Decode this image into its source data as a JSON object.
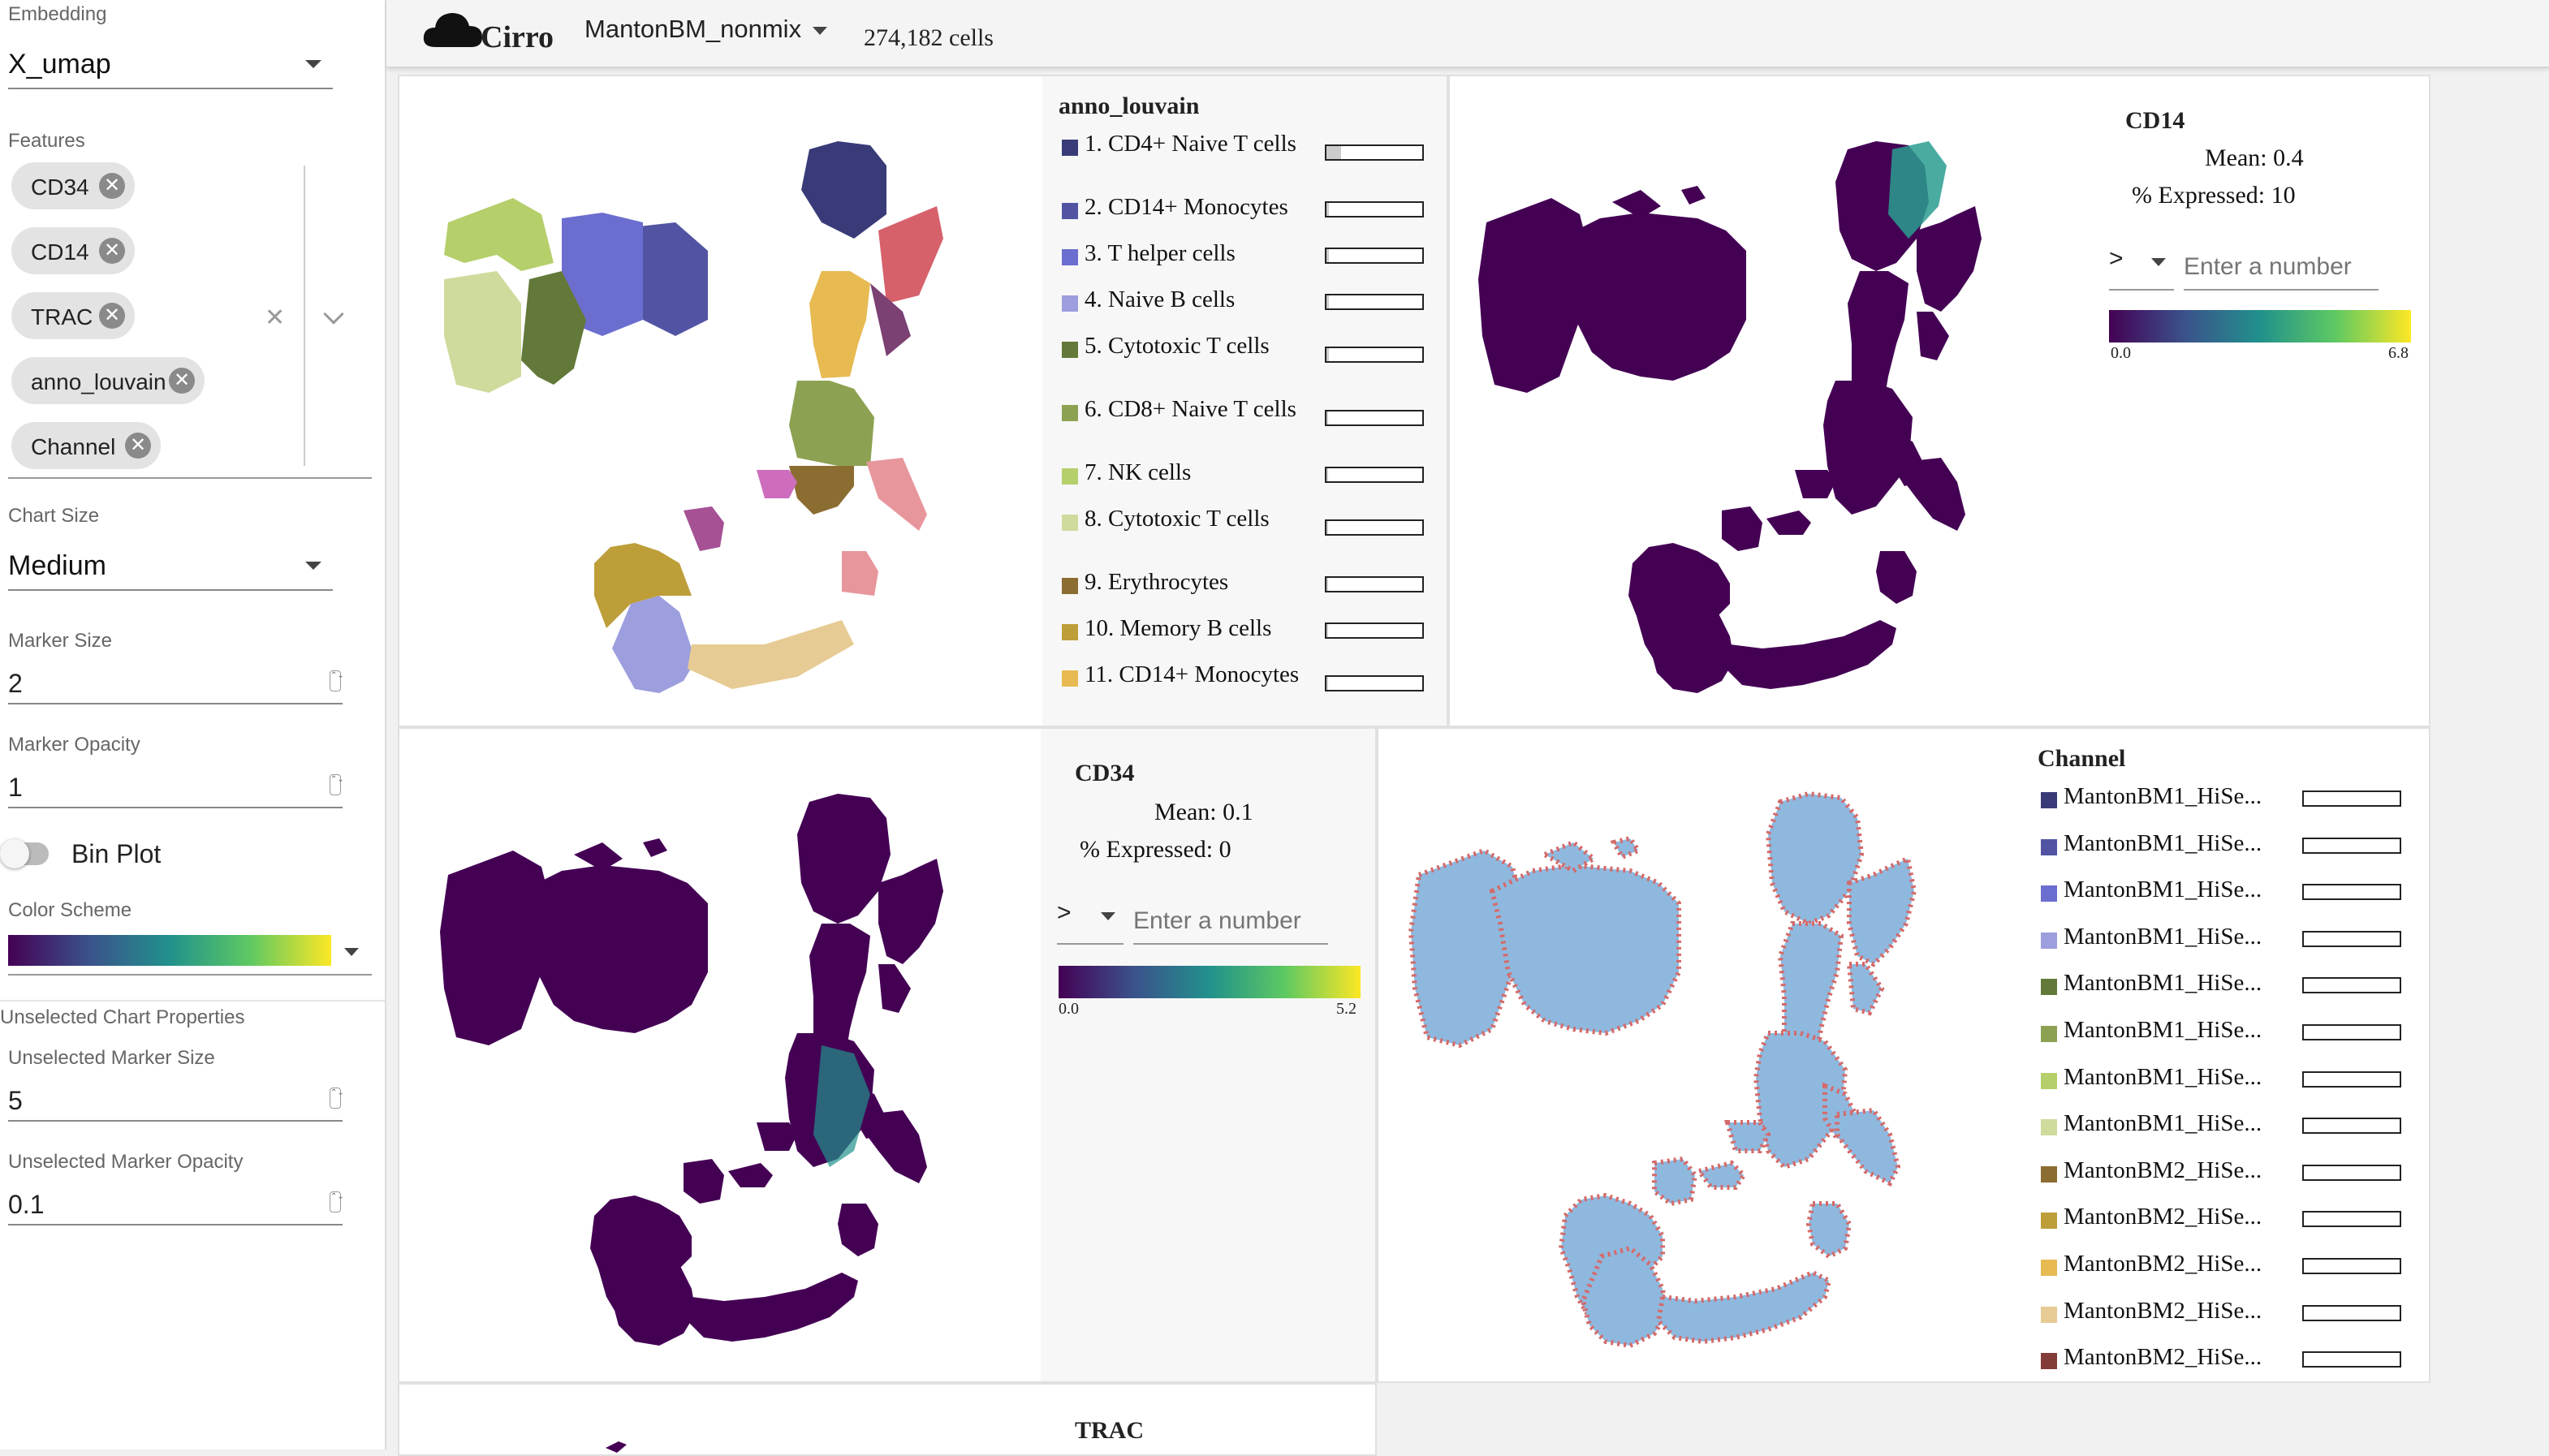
{
  "sidebar": {
    "embedding_label": "Embedding",
    "embedding_value": "X_umap",
    "features_label": "Features",
    "features": [
      "CD34",
      "CD14",
      "TRAC",
      "anno_louvain",
      "Channel"
    ],
    "chart_size_label": "Chart Size",
    "chart_size_value": "Medium",
    "marker_size_label": "Marker Size",
    "marker_size_value": "2",
    "marker_opacity_label": "Marker Opacity",
    "marker_opacity_value": "1",
    "bin_plot_label": "Bin Plot",
    "color_scheme_label": "Color Scheme",
    "unselected_header": "Unselected Chart Properties",
    "unselected_size_label": "Unselected Marker Size",
    "unselected_size_value": "5",
    "unselected_opacity_label": "Unselected Marker Opacity",
    "unselected_opacity_value": "0.1"
  },
  "topbar": {
    "app_name": "Cirro",
    "dataset": "MantonBM_nonmix",
    "cells": "274,182 cells"
  },
  "anno": {
    "title": "anno_louvain",
    "items": [
      {
        "label": "1. CD4+ Naive T cells",
        "color": "#393b79",
        "fill": 0.6
      },
      {
        "label": "2. CD14+ Monocytes",
        "color": "#5254a3",
        "fill": 0.1
      },
      {
        "label": "3. T helper cells",
        "color": "#6b6ecf",
        "fill": 0.1
      },
      {
        "label": "4. Naive B cells",
        "color": "#9c9ede",
        "fill": 0.1
      },
      {
        "label": "5. Cytotoxic T cells",
        "color": "#637939",
        "fill": 0.1
      },
      {
        "label": "6. CD8+ Naive T cells",
        "color": "#8ca252",
        "fill": 0.05
      },
      {
        "label": "7. NK cells",
        "color": "#b5cf6b",
        "fill": 0.05
      },
      {
        "label": "8. Cytotoxic T cells",
        "color": "#cedb9c",
        "fill": 0.05
      },
      {
        "label": "9. Erythrocytes",
        "color": "#8c6d31",
        "fill": 0.05
      },
      {
        "label": "10. Memory B cells",
        "color": "#bd9e39",
        "fill": 0.05
      },
      {
        "label": "11. CD14+ Monocytes",
        "color": "#e7ba52",
        "fill": 0.05
      }
    ]
  },
  "cd14": {
    "title": "CD14",
    "mean": "Mean: 0.4",
    "expressed": "% Expressed: 10",
    "op": ">",
    "placeholder": "Enter a number",
    "min": "0.0",
    "max": "6.8"
  },
  "cd34": {
    "title": "CD34",
    "mean": "Mean: 0.1",
    "expressed": "% Expressed: 0",
    "op": ">",
    "placeholder": "Enter a number",
    "min": "0.0",
    "max": "5.2"
  },
  "channel": {
    "title": "Channel",
    "items": [
      {
        "label": "MantonBM1_HiSe...",
        "color": "#393b79"
      },
      {
        "label": "MantonBM1_HiSe...",
        "color": "#5254a3"
      },
      {
        "label": "MantonBM1_HiSe...",
        "color": "#6b6ecf"
      },
      {
        "label": "MantonBM1_HiSe...",
        "color": "#9c9ede"
      },
      {
        "label": "MantonBM1_HiSe...",
        "color": "#637939"
      },
      {
        "label": "MantonBM1_HiSe...",
        "color": "#8ca252"
      },
      {
        "label": "MantonBM1_HiSe...",
        "color": "#b5cf6b"
      },
      {
        "label": "MantonBM1_HiSe...",
        "color": "#cedb9c"
      },
      {
        "label": "MantonBM2_HiSe...",
        "color": "#8c6d31"
      },
      {
        "label": "MantonBM2_HiSe...",
        "color": "#bd9e39"
      },
      {
        "label": "MantonBM2_HiSe...",
        "color": "#e7ba52"
      },
      {
        "label": "MantonBM2_HiSe...",
        "color": "#e7cb94"
      },
      {
        "label": "MantonBM2_HiSe...",
        "color": "#843c39"
      }
    ]
  },
  "trac": {
    "title": "TRAC"
  }
}
